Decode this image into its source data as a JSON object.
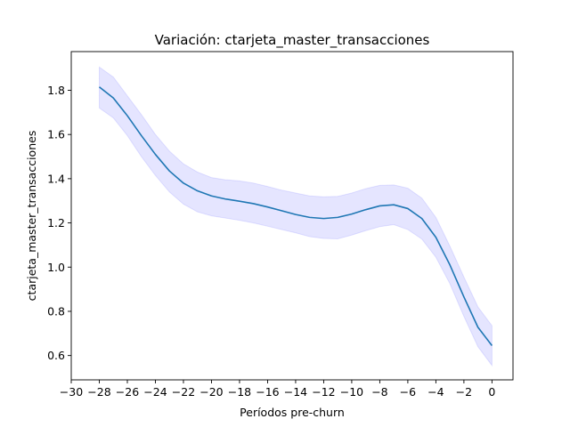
{
  "chart_data": {
    "type": "line",
    "title": "Variación: ctarjeta_master_transacciones",
    "xlabel": "Períodos pre-churn",
    "ylabel": "ctarjeta_master_transacciones",
    "xlim": [
      -30,
      1.5
    ],
    "ylim": [
      0.49,
      1.975
    ],
    "xticks": [
      -30,
      -28,
      -26,
      -24,
      -22,
      -20,
      -18,
      -16,
      -14,
      -12,
      -10,
      -8,
      -6,
      -4,
      -2,
      0
    ],
    "xtick_labels": [
      "−30",
      "−28",
      "−26",
      "−24",
      "−22",
      "−20",
      "−18",
      "−16",
      "−14",
      "−12",
      "−10",
      "−8",
      "−6",
      "−4",
      "−2",
      "0"
    ],
    "yticks": [
      0.6,
      0.8,
      1.0,
      1.2,
      1.4,
      1.6,
      1.8
    ],
    "ytick_labels": [
      "0.6",
      "0.8",
      "1.0",
      "1.2",
      "1.4",
      "1.6",
      "1.8"
    ],
    "grid": false,
    "legend": "none",
    "series": [
      {
        "x": [
          -28,
          -27,
          -26,
          -25,
          -24,
          -23,
          -22,
          -21,
          -20,
          -19,
          -18,
          -17,
          -16,
          -15,
          -14,
          -13,
          -12,
          -11,
          -10,
          -9,
          -8,
          -7,
          -6,
          -5,
          -4,
          -3,
          -2,
          -1,
          0
        ],
        "values": [
          1.815,
          1.765,
          1.685,
          1.595,
          1.51,
          1.435,
          1.38,
          1.345,
          1.322,
          1.308,
          1.298,
          1.287,
          1.272,
          1.255,
          1.238,
          1.225,
          1.22,
          1.225,
          1.24,
          1.26,
          1.277,
          1.282,
          1.265,
          1.22,
          1.135,
          1.01,
          0.865,
          0.728,
          0.645
        ],
        "band_upper": [
          1.905,
          1.86,
          1.775,
          1.69,
          1.6,
          1.525,
          1.467,
          1.43,
          1.405,
          1.395,
          1.39,
          1.38,
          1.365,
          1.348,
          1.335,
          1.322,
          1.318,
          1.32,
          1.335,
          1.355,
          1.37,
          1.372,
          1.357,
          1.312,
          1.225,
          1.095,
          0.955,
          0.82,
          0.735
        ],
        "band_lower": [
          1.72,
          1.675,
          1.595,
          1.5,
          1.415,
          1.34,
          1.285,
          1.25,
          1.232,
          1.222,
          1.212,
          1.2,
          1.185,
          1.17,
          1.155,
          1.138,
          1.13,
          1.128,
          1.145,
          1.165,
          1.183,
          1.192,
          1.17,
          1.127,
          1.045,
          0.925,
          0.777,
          0.64,
          0.555
        ]
      }
    ],
    "colors": {
      "line": "#1f77b4",
      "band": "#0000ff"
    }
  }
}
